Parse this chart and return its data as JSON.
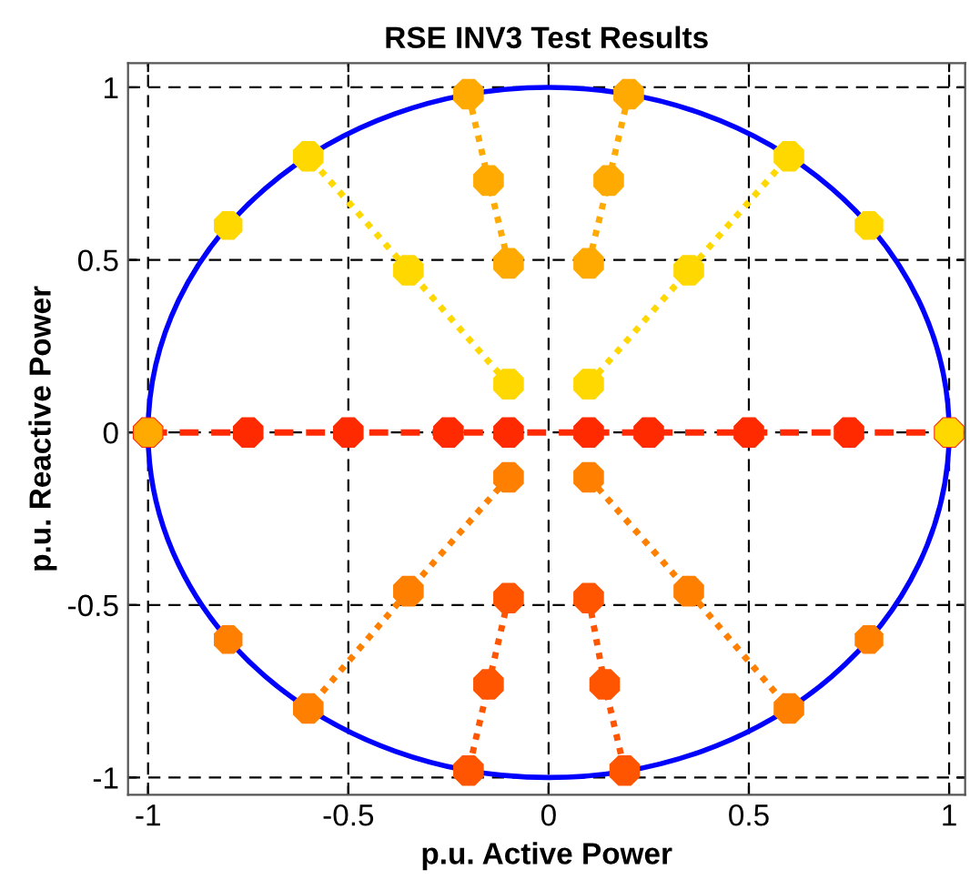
{
  "chart_data": {
    "type": "line",
    "title": "RSE INV3 Test Results",
    "xlabel": "p.u. Active Power",
    "ylabel": "p.u. Reactive Power",
    "xlim": [
      -1.05,
      1.04
    ],
    "ylim": [
      -1.05,
      1.07
    ],
    "xticks": [
      -1,
      -0.5,
      0,
      0.5,
      1
    ],
    "yticks": [
      -1,
      -0.5,
      0,
      0.5,
      1
    ],
    "grid": true,
    "series": [
      {
        "color": "#ff2a00",
        "line_style": "dashed",
        "marker": "circle",
        "x": [
          -1,
          -0.75,
          -0.5,
          -0.25,
          -0.1,
          0.1,
          0.25,
          0.5,
          0.75,
          1
        ],
        "values": [
          0,
          0,
          0,
          0,
          0,
          0,
          0,
          0,
          0,
          0
        ]
      },
      {
        "color": "#ff5500",
        "line_style": "dotted",
        "marker": "circle",
        "x": [
          -0.1,
          -0.15,
          -0.2
        ],
        "values": [
          -0.48,
          -0.73,
          -0.98
        ]
      },
      {
        "color": "#ff5500",
        "line_style": "dotted",
        "marker": "circle",
        "x": [
          0.1,
          0.14,
          0.19
        ],
        "values": [
          -0.48,
          -0.73,
          -0.98
        ]
      },
      {
        "color": "#ff8000",
        "line_style": "dotted",
        "marker": "circle",
        "x": [
          -0.1,
          -0.35,
          -0.6
        ],
        "values": [
          -0.13,
          -0.46,
          -0.8
        ]
      },
      {
        "color": "#ff8000",
        "line_style": "dotted",
        "marker": "circle",
        "x": [
          0.1,
          0.35,
          0.6
        ],
        "values": [
          -0.13,
          -0.46,
          -0.8
        ]
      },
      {
        "color": "#ffd800",
        "line_style": "dotted",
        "marker": "circle",
        "x": [
          -0.1,
          -0.35,
          -0.6
        ],
        "values": [
          0.14,
          0.47,
          0.8
        ]
      },
      {
        "color": "#ffd800",
        "line_style": "dotted",
        "marker": "circle",
        "x": [
          0.1,
          0.35,
          0.6
        ],
        "values": [
          0.14,
          0.47,
          0.8
        ]
      },
      {
        "color": "#ffaa00",
        "line_style": "dotted",
        "marker": "circle",
        "x": [
          -0.1,
          -0.15,
          -0.2
        ],
        "values": [
          0.49,
          0.73,
          0.98
        ]
      },
      {
        "color": "#ffaa00",
        "line_style": "dotted",
        "marker": "circle",
        "x": [
          0.1,
          0.15,
          0.2
        ],
        "values": [
          0.49,
          0.73,
          0.98
        ]
      },
      {
        "type": "scatter",
        "color": "#ff8000",
        "marker": "circle",
        "x": [
          -0.8,
          0.8
        ],
        "values": [
          -0.6,
          -0.6
        ]
      },
      {
        "type": "scatter",
        "color": "#ffd800",
        "marker": "circle",
        "x": [
          -0.8,
          0.8,
          1
        ],
        "values": [
          0.6,
          0.6,
          0
        ]
      },
      {
        "type": "scatter",
        "color": "#ffaa00",
        "marker": "circle",
        "x": [
          -1
        ],
        "values": [
          0
        ]
      }
    ]
  }
}
